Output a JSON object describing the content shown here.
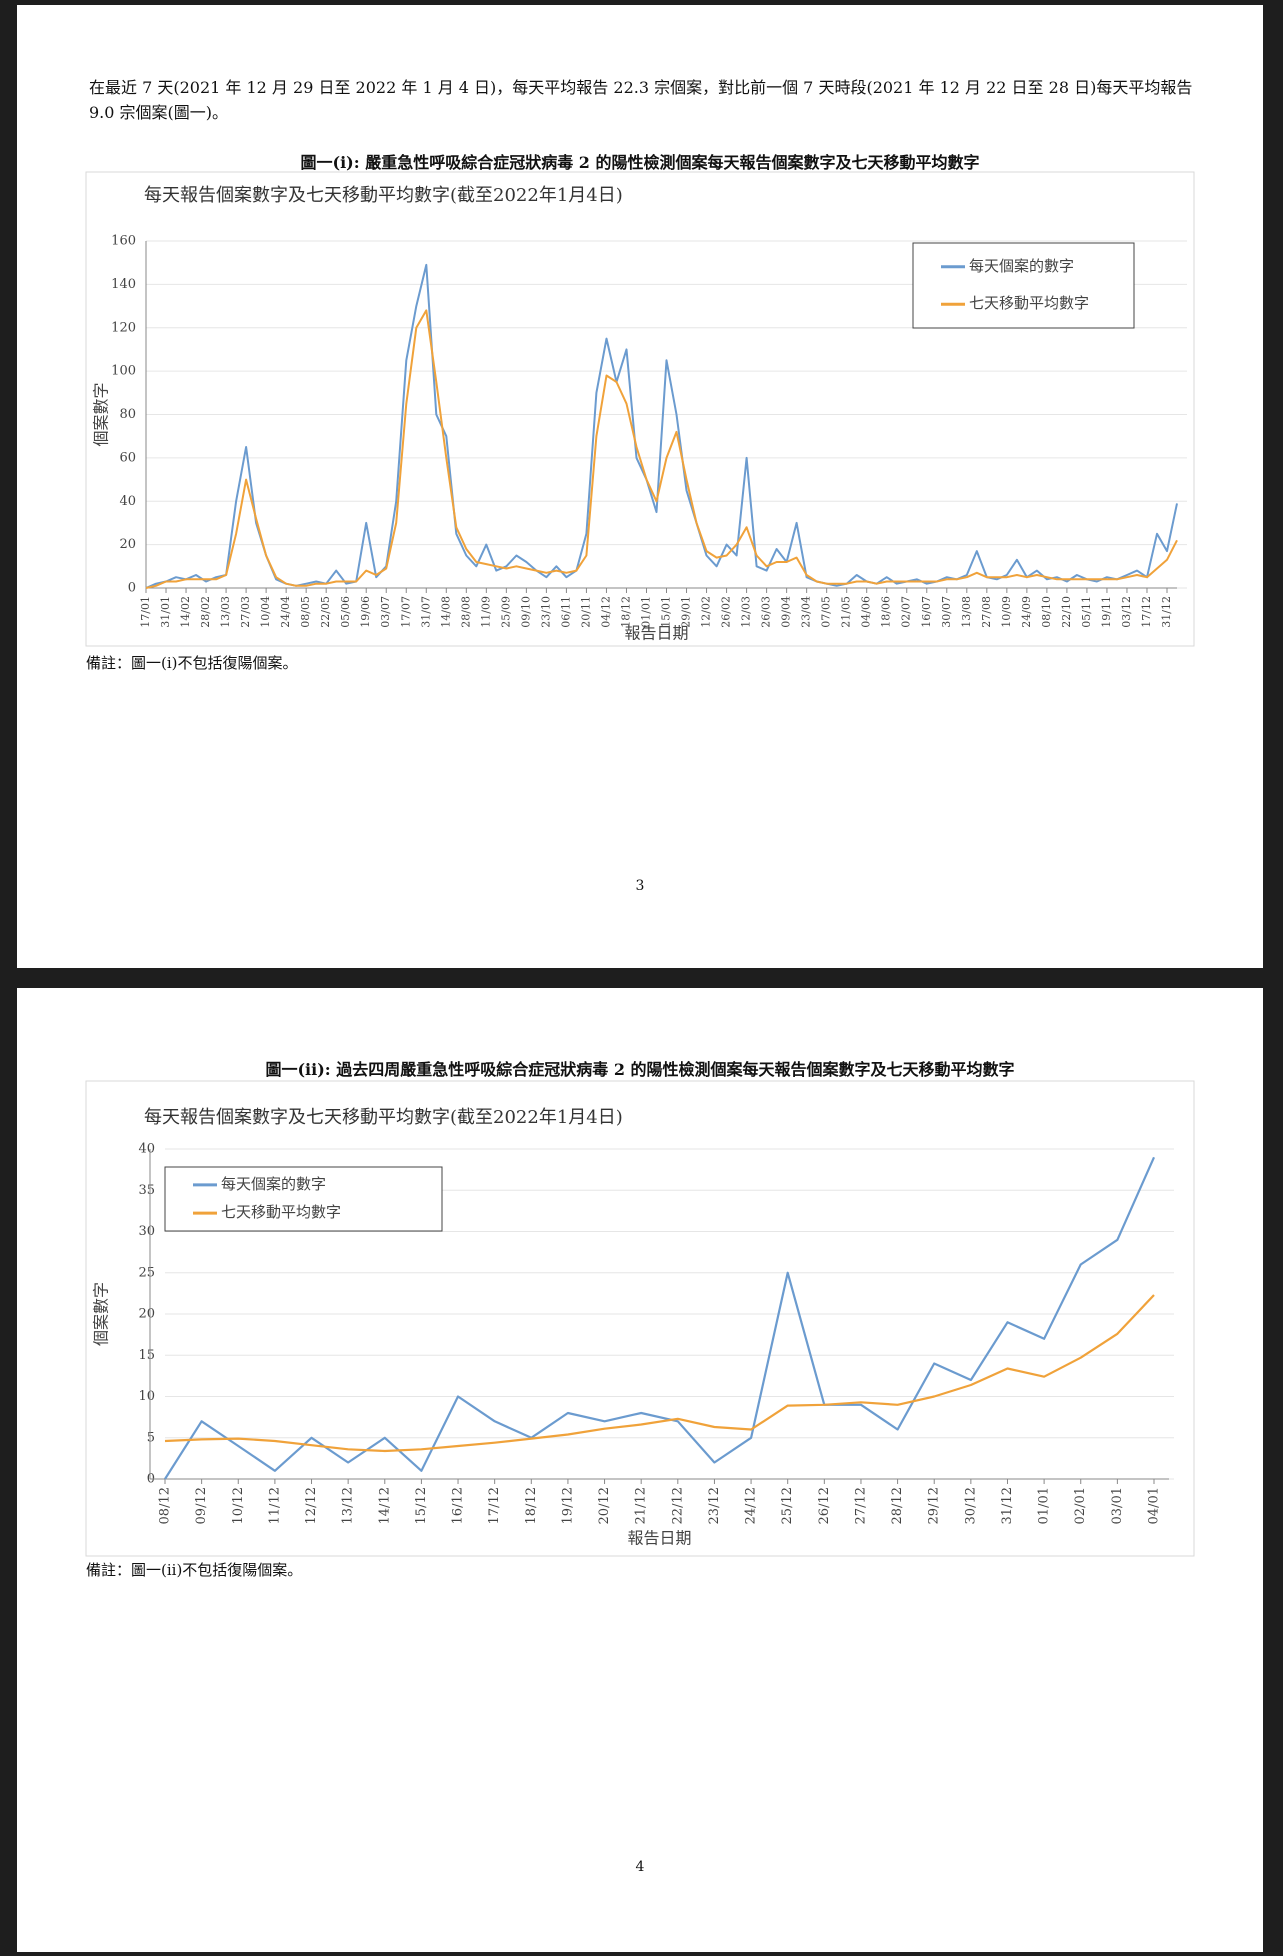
{
  "document": {
    "pages": [
      {
        "paragraph": "在最近 7 天(2021 年 12 月 29 日至 2022 年 1 月 4 日)，每天平均報告 22.3 宗個案，對比前一個 7 天時段(2021 年 12 月 22 日至 28 日)每天平均報告 9.0 宗個案(圖一)。",
        "figure_caption": "圖一(i): 嚴重急性呼吸綜合症冠狀病毒 2 的陽性檢測個案每天報告個案數字及七天移動平均數字",
        "note": "備註：圖一(i)不包括復陽個案。",
        "page_number": "3"
      },
      {
        "figure_caption": "圖一(ii): 過去四周嚴重急性呼吸綜合症冠狀病毒 2 的陽性檢測個案每天報告個案數字及七天移動平均數字",
        "note": "備註：圖一(ii)不包括復陽個案。",
        "page_number": "4"
      }
    ]
  },
  "chart_data": [
    {
      "type": "line",
      "title": "每天報告個案數字及七天移動平均數字(截至2022年1月4日)",
      "x_label": "報告日期",
      "y_label": "個案數字",
      "legend": "top-right",
      "grid": true,
      "ylim": [
        0,
        160
      ],
      "yticks": [
        0,
        20,
        40,
        60,
        80,
        100,
        120,
        140,
        160
      ],
      "categories": [
        "17/01",
        null,
        "31/01",
        null,
        "14/02",
        null,
        "28/02",
        null,
        "13/03",
        null,
        "27/03",
        null,
        "10/04",
        null,
        "24/04",
        null,
        "08/05",
        null,
        "22/05",
        null,
        "05/06",
        null,
        "19/06",
        null,
        "03/07",
        null,
        "17/07",
        null,
        "31/07",
        null,
        "14/08",
        null,
        "28/08",
        null,
        "11/09",
        null,
        "25/09",
        null,
        "09/10",
        null,
        "23/10",
        null,
        "06/11",
        null,
        "20/11",
        null,
        "04/12",
        null,
        "18/12",
        null,
        "01/01",
        null,
        "15/01",
        null,
        "29/01",
        null,
        "12/02",
        null,
        "26/02",
        null,
        "12/03",
        null,
        "26/03",
        null,
        "09/04",
        null,
        "23/04",
        null,
        "07/05",
        null,
        "21/05",
        null,
        "04/06",
        null,
        "18/06",
        null,
        "02/07",
        null,
        "16/07",
        null,
        "30/07",
        null,
        "13/08",
        null,
        "27/08",
        null,
        "10/09",
        null,
        "24/09",
        null,
        "08/10",
        null,
        "22/10",
        null,
        "05/11",
        null,
        "19/11",
        null,
        "03/12",
        null,
        "17/12",
        null,
        "31/12",
        null
      ],
      "series": [
        {
          "name": "每天個案的數字",
          "color": "#6b9bcf",
          "values": [
            0,
            2,
            3,
            5,
            4,
            6,
            3,
            5,
            6,
            40,
            65,
            30,
            15,
            4,
            2,
            1,
            2,
            3,
            2,
            8,
            2,
            3,
            30,
            5,
            10,
            40,
            105,
            130,
            149,
            80,
            70,
            25,
            15,
            10,
            20,
            8,
            10,
            15,
            12,
            8,
            5,
            10,
            5,
            8,
            25,
            90,
            115,
            95,
            110,
            60,
            50,
            35,
            105,
            80,
            45,
            30,
            15,
            10,
            20,
            15,
            60,
            10,
            8,
            18,
            12,
            30,
            5,
            3,
            2,
            1,
            2,
            6,
            3,
            2,
            5,
            2,
            3,
            4,
            2,
            3,
            5,
            4,
            6,
            17,
            5,
            4,
            6,
            13,
            5,
            8,
            4,
            5,
            3,
            6,
            4,
            3,
            5,
            4,
            6,
            8,
            5,
            25,
            17,
            39
          ]
        },
        {
          "name": "七天移動平均數字",
          "color": "#f0a23a",
          "values": [
            0,
            1,
            3,
            3,
            4,
            4,
            4,
            4,
            6,
            25,
            50,
            32,
            15,
            5,
            2,
            1,
            1,
            2,
            2,
            3,
            3,
            3,
            8,
            6,
            9,
            30,
            85,
            120,
            128,
            95,
            60,
            28,
            18,
            12,
            11,
            10,
            9,
            10,
            9,
            8,
            7,
            8,
            7,
            8,
            15,
            70,
            98,
            95,
            85,
            65,
            50,
            40,
            60,
            72,
            50,
            30,
            17,
            14,
            15,
            20,
            28,
            15,
            10,
            12,
            12,
            14,
            6,
            3,
            2,
            2,
            2,
            3,
            3,
            2,
            3,
            3,
            3,
            3,
            3,
            3,
            4,
            4,
            5,
            7,
            5,
            5,
            5,
            6,
            5,
            6,
            5,
            4,
            4,
            4,
            4,
            4,
            4,
            4,
            5,
            6,
            5,
            9,
            13,
            22
          ]
        }
      ]
    },
    {
      "type": "line",
      "title": "每天報告個案數字及七天移動平均數字(截至2022年1月4日)",
      "x_label": "報告日期",
      "y_label": "個案數字",
      "legend": "top-left",
      "grid": true,
      "ylim": [
        0,
        40
      ],
      "yticks": [
        0,
        5,
        10,
        15,
        20,
        25,
        30,
        35,
        40
      ],
      "categories": [
        "08/12",
        "09/12",
        "10/12",
        "11/12",
        "12/12",
        "13/12",
        "14/12",
        "15/12",
        "16/12",
        "17/12",
        "18/12",
        "19/12",
        "20/12",
        "21/12",
        "22/12",
        "23/12",
        "24/12",
        "25/12",
        "26/12",
        "27/12",
        "28/12",
        "29/12",
        "30/12",
        "31/12",
        "01/01",
        "02/01",
        "03/01",
        "04/01"
      ],
      "series": [
        {
          "name": "每天個案的數字",
          "color": "#6b9bcf",
          "values": [
            0,
            7,
            4,
            1,
            5,
            2,
            5,
            1,
            10,
            7,
            5,
            8,
            7,
            8,
            7,
            2,
            5,
            25,
            9,
            9,
            6,
            14,
            12,
            19,
            17,
            26,
            29,
            39
          ]
        },
        {
          "name": "七天移動平均數字",
          "color": "#f0a23a",
          "values": [
            4.6,
            4.8,
            4.9,
            4.6,
            4.1,
            3.6,
            3.4,
            3.6,
            4.0,
            4.4,
            4.9,
            5.4,
            6.1,
            6.6,
            7.3,
            6.3,
            6.0,
            8.9,
            9.0,
            9.3,
            9.0,
            10.0,
            11.4,
            13.4,
            12.4,
            14.7,
            17.6,
            22.3
          ]
        }
      ]
    }
  ]
}
